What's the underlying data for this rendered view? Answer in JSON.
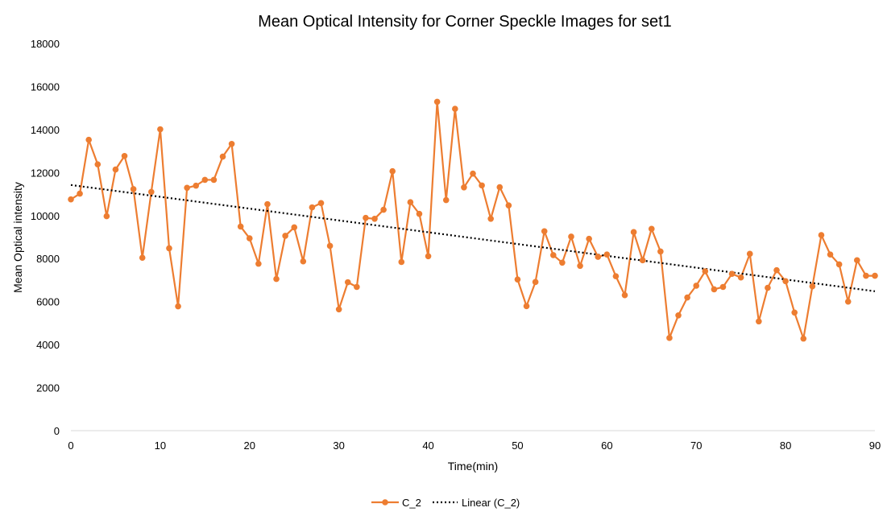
{
  "chart_data": {
    "type": "line",
    "title": "Mean Optical Intensity for Corner Speckle Images for set1",
    "xlabel": "Time(min)",
    "ylabel": "Mean Optical intensity",
    "xlim": [
      0,
      90
    ],
    "ylim": [
      0,
      18000
    ],
    "x_ticks": [
      0,
      10,
      20,
      30,
      40,
      50,
      60,
      70,
      80,
      90
    ],
    "y_ticks": [
      0,
      2000,
      4000,
      6000,
      8000,
      10000,
      12000,
      14000,
      16000,
      18000
    ],
    "grid": false,
    "legend_position": "bottom",
    "series": [
      {
        "name": "C_2",
        "color": "#ED7D31",
        "x": [
          0,
          1,
          2,
          3,
          4,
          5,
          6,
          7,
          8,
          9,
          10,
          11,
          12,
          13,
          14,
          15,
          16,
          17,
          18,
          19,
          20,
          21,
          22,
          23,
          24,
          25,
          26,
          27,
          28,
          29,
          30,
          31,
          32,
          33,
          34,
          35,
          36,
          37,
          38,
          39,
          40,
          41,
          42,
          43,
          44,
          45,
          46,
          47,
          48,
          49,
          50,
          51,
          52,
          53,
          54,
          55,
          56,
          57,
          58,
          59,
          60,
          61,
          62,
          63,
          64,
          65,
          66,
          67,
          68,
          69,
          70,
          71,
          72,
          73,
          74,
          75,
          76,
          77,
          78,
          79,
          80,
          81,
          82,
          83,
          84,
          85,
          86,
          87,
          88,
          89,
          90
        ],
        "values": [
          10750,
          11020,
          13520,
          12380,
          9970,
          12140,
          12770,
          11230,
          8040,
          11100,
          14010,
          8480,
          5780,
          11290,
          11390,
          11660,
          11660,
          12740,
          13330,
          9490,
          8940,
          7760,
          10530,
          7050,
          9060,
          9450,
          7870,
          10380,
          10580,
          8590,
          5640,
          6900,
          6680,
          9890,
          9850,
          10270,
          12060,
          7840,
          10620,
          10080,
          8110,
          15290,
          10720,
          14960,
          11310,
          11950,
          11400,
          9850,
          11320,
          10470,
          7030,
          5790,
          6910,
          9270,
          8160,
          7810,
          9020,
          7660,
          8920,
          8080,
          8190,
          7180,
          6300,
          9230,
          7920,
          9380,
          8330,
          4310,
          5360,
          6190,
          6740,
          7410,
          6570,
          6680,
          7290,
          7120,
          8220,
          5080,
          6640,
          7460,
          6950,
          5490,
          4280,
          6710,
          9090,
          8190,
          7730,
          6000,
          7920,
          7200,
          7200
        ]
      },
      {
        "name": "Linear (C_2)",
        "color": "#000000",
        "style": "dotted",
        "x": [
          0,
          90
        ],
        "values": [
          11420,
          6480
        ]
      }
    ]
  }
}
